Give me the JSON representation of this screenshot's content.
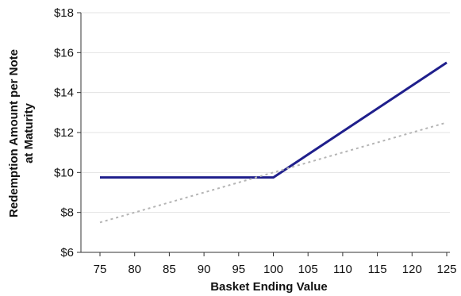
{
  "chart_data": {
    "type": "line",
    "xlabel": "Basket Ending Value",
    "ylabel_line1": "Redemption Amount per Note",
    "ylabel_line2": "at Maturity",
    "xlim": [
      75,
      125
    ],
    "ylim": [
      6,
      18
    ],
    "x_ticks": [
      75,
      80,
      85,
      90,
      95,
      100,
      105,
      110,
      115,
      120,
      125
    ],
    "y_ticks": [
      {
        "value": 6,
        "label": "$6"
      },
      {
        "value": 8,
        "label": "$8"
      },
      {
        "value": 10,
        "label": "$10"
      },
      {
        "value": 12,
        "label": "$12"
      },
      {
        "value": 14,
        "label": "$14"
      },
      {
        "value": 16,
        "label": "$16"
      },
      {
        "value": 18,
        "label": "$18"
      }
    ],
    "grid": "horizontal",
    "series": [
      {
        "style": "solid",
        "color": "#1f1f8c",
        "points": [
          [
            75,
            9.75
          ],
          [
            100,
            9.75
          ],
          [
            125,
            15.5
          ]
        ]
      },
      {
        "style": "dotted",
        "color": "#b4b4b4",
        "points": [
          [
            75,
            7.5
          ],
          [
            125,
            12.5
          ]
        ]
      }
    ]
  }
}
